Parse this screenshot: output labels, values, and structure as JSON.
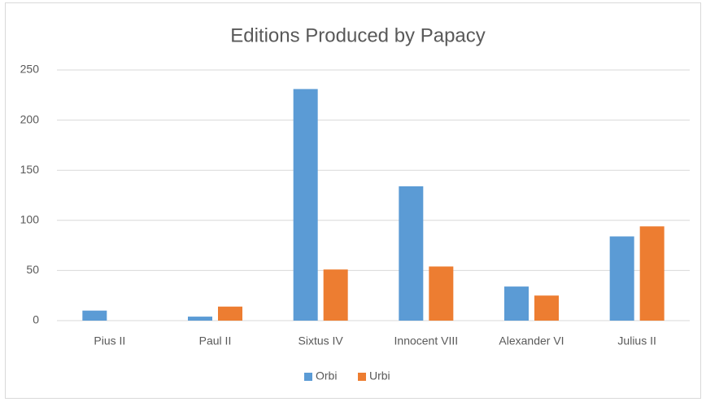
{
  "chart_data": {
    "type": "bar",
    "title": "Editions Produced by Papacy",
    "categories": [
      "Pius II",
      "Paul II",
      "Sixtus IV",
      "Innocent VIII",
      "Alexander VI",
      "Julius II"
    ],
    "series": [
      {
        "name": "Orbi",
        "color": "#5b9bd5",
        "values": [
          10,
          4,
          231,
          134,
          34,
          84
        ]
      },
      {
        "name": "Urbi",
        "color": "#ed7d31",
        "values": [
          0,
          14,
          51,
          54,
          25,
          94
        ]
      }
    ],
    "ylim": [
      0,
      250
    ],
    "yticks": [
      0,
      50,
      100,
      150,
      200,
      250
    ],
    "grid": true,
    "legend": "bottom"
  }
}
